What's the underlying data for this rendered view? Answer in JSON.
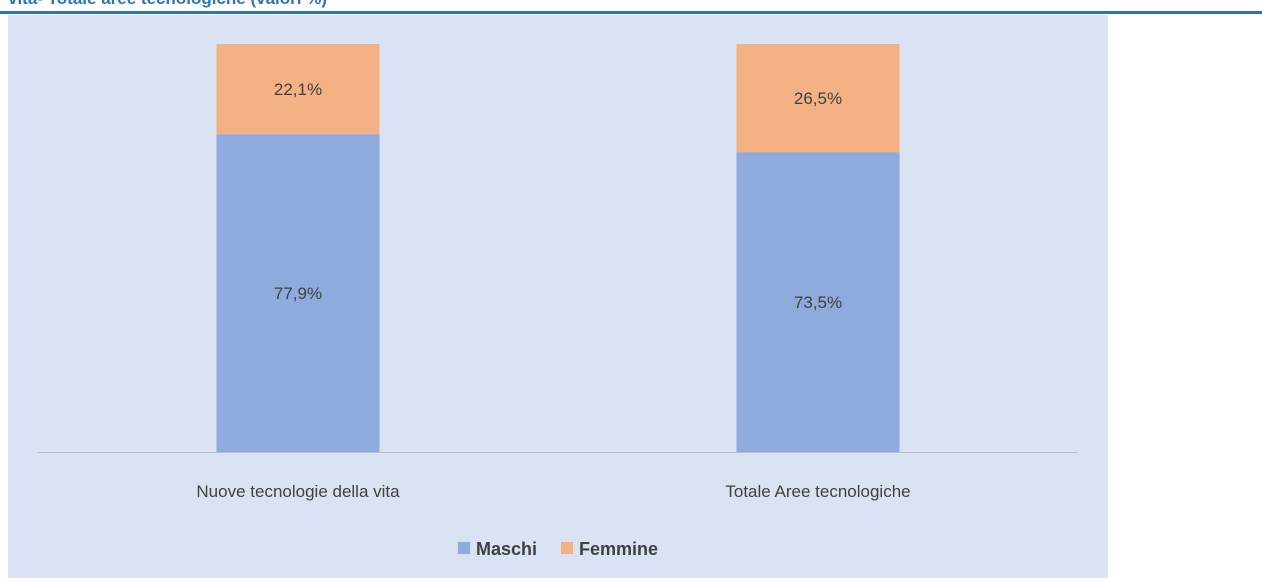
{
  "chart_data": {
    "type": "stacked_bar",
    "title": "vita- Totale aree tecnologiche (valori %)",
    "categories": [
      "Nuove tecnologie della vita",
      "Totale Aree tecnologiche"
    ],
    "series": [
      {
        "name": "Maschi",
        "color": "#8faadc",
        "values": [
          77.9,
          73.5
        ],
        "value_labels": [
          "77,9%",
          "73,5%"
        ]
      },
      {
        "name": "Femmine",
        "color": "#f4b183",
        "values": [
          22.1,
          26.5
        ],
        "value_labels": [
          "22,1%",
          "26,5%"
        ]
      }
    ]
  }
}
